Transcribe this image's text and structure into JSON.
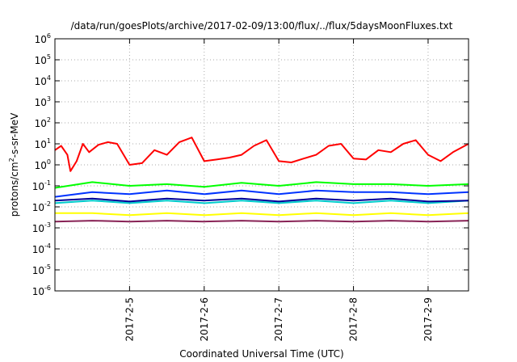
{
  "chart_data": {
    "type": "line",
    "title": "/data/run/goesPlots/archive/2017-02-09/13:00/flux/../flux/5daysMoonFluxes.txt",
    "xlabel": "Coordinated Universal Time (UTC)",
    "ylabel": "protons/cm²-s-sr-MeV",
    "ylabel_parts": {
      "before": "protons/cm",
      "sup": "2",
      "after": "-s-sr-MeV"
    },
    "y_scale": "log",
    "ylim": [
      1e-06,
      1000000.0
    ],
    "y_ticks": [
      {
        "base": "10",
        "exp": "-6",
        "value": 1e-06
      },
      {
        "base": "10",
        "exp": "-5",
        "value": 1e-05
      },
      {
        "base": "10",
        "exp": "-4",
        "value": 0.0001
      },
      {
        "base": "10",
        "exp": "-3",
        "value": 0.001
      },
      {
        "base": "10",
        "exp": "-2",
        "value": 0.01
      },
      {
        "base": "10",
        "exp": "-1",
        "value": 0.1
      },
      {
        "base": "10",
        "exp": "0",
        "value": 1
      },
      {
        "base": "10",
        "exp": "1",
        "value": 10
      },
      {
        "base": "10",
        "exp": "2",
        "value": 100
      },
      {
        "base": "10",
        "exp": "3",
        "value": 1000
      },
      {
        "base": "10",
        "exp": "4",
        "value": 10000
      },
      {
        "base": "10",
        "exp": "5",
        "value": 100000
      },
      {
        "base": "10",
        "exp": "6",
        "value": 1000000
      }
    ],
    "xlim": [
      "2017-02-04 00:00",
      "2017-02-09 13:00"
    ],
    "x_ticks": [
      "2017-2-5",
      "2017-2-6",
      "2017-2-7",
      "2017-2-8",
      "2017-2-9"
    ],
    "grid": true,
    "legend": "none",
    "series": [
      {
        "color": "#ff0000",
        "x": [
          "2017-02-04 00:00",
          "2017-02-04 02:00",
          "2017-02-04 04:00",
          "2017-02-04 05:00",
          "2017-02-04 07:00",
          "2017-02-04 09:00",
          "2017-02-04 11:00",
          "2017-02-04 14:00",
          "2017-02-04 17:00",
          "2017-02-04 20:00",
          "2017-02-05 00:00",
          "2017-02-05 04:00",
          "2017-02-05 08:00",
          "2017-02-05 12:00",
          "2017-02-05 16:00",
          "2017-02-05 20:00",
          "2017-02-06 00:00",
          "2017-02-06 04:00",
          "2017-02-06 08:00",
          "2017-02-06 12:00",
          "2017-02-06 16:00",
          "2017-02-06 20:00",
          "2017-02-07 00:00",
          "2017-02-07 04:00",
          "2017-02-07 08:00",
          "2017-02-07 12:00",
          "2017-02-07 16:00",
          "2017-02-07 20:00",
          "2017-02-08 00:00",
          "2017-02-08 04:00",
          "2017-02-08 08:00",
          "2017-02-08 12:00",
          "2017-02-08 16:00",
          "2017-02-08 20:00",
          "2017-02-09 00:00",
          "2017-02-09 04:00",
          "2017-02-09 08:00",
          "2017-02-09 13:00"
        ],
        "y": [
          5,
          8,
          3,
          0.5,
          1.5,
          10,
          4,
          9,
          12,
          10,
          1,
          1.2,
          5,
          3,
          12,
          20,
          1.5,
          1.8,
          2.2,
          3,
          8,
          15,
          1.5,
          1.3,
          2,
          3,
          8,
          10,
          2,
          1.8,
          5,
          4,
          10,
          15,
          3,
          1.5,
          4,
          10
        ]
      },
      {
        "color": "#00ff00",
        "x": [
          "2017-02-04 00:00",
          "2017-02-04 12:00",
          "2017-02-05 00:00",
          "2017-02-05 12:00",
          "2017-02-06 00:00",
          "2017-02-06 12:00",
          "2017-02-07 00:00",
          "2017-02-07 12:00",
          "2017-02-08 00:00",
          "2017-02-08 12:00",
          "2017-02-09 00:00",
          "2017-02-09 13:00"
        ],
        "y": [
          0.08,
          0.15,
          0.1,
          0.12,
          0.09,
          0.14,
          0.1,
          0.15,
          0.12,
          0.12,
          0.1,
          0.12
        ]
      },
      {
        "color": "#0033ff",
        "x": [
          "2017-02-04 00:00",
          "2017-02-04 12:00",
          "2017-02-05 00:00",
          "2017-02-05 12:00",
          "2017-02-06 00:00",
          "2017-02-06 12:00",
          "2017-02-07 00:00",
          "2017-02-07 12:00",
          "2017-02-08 00:00",
          "2017-02-08 12:00",
          "2017-02-09 00:00",
          "2017-02-09 13:00"
        ],
        "y": [
          0.03,
          0.05,
          0.04,
          0.06,
          0.04,
          0.06,
          0.04,
          0.06,
          0.05,
          0.05,
          0.04,
          0.05
        ]
      },
      {
        "color": "#00cccc",
        "x": [
          "2017-02-04 00:00",
          "2017-02-04 12:00",
          "2017-02-05 00:00",
          "2017-02-05 12:00",
          "2017-02-06 00:00",
          "2017-02-06 12:00",
          "2017-02-07 00:00",
          "2017-02-07 12:00",
          "2017-02-08 00:00",
          "2017-02-08 12:00",
          "2017-02-09 00:00",
          "2017-02-09 13:00"
        ],
        "y": [
          0.015,
          0.02,
          0.015,
          0.02,
          0.015,
          0.02,
          0.015,
          0.02,
          0.015,
          0.02,
          0.015,
          0.02
        ]
      },
      {
        "color": "#000099",
        "x": [
          "2017-02-04 00:00",
          "2017-02-04 12:00",
          "2017-02-05 00:00",
          "2017-02-05 12:00",
          "2017-02-06 00:00",
          "2017-02-06 12:00",
          "2017-02-07 00:00",
          "2017-02-07 12:00",
          "2017-02-08 00:00",
          "2017-02-08 12:00",
          "2017-02-09 00:00",
          "2017-02-09 13:00"
        ],
        "y": [
          0.02,
          0.025,
          0.018,
          0.025,
          0.02,
          0.025,
          0.018,
          0.025,
          0.02,
          0.025,
          0.018,
          0.02
        ]
      },
      {
        "color": "#ffff00",
        "x": [
          "2017-02-04 00:00",
          "2017-02-04 12:00",
          "2017-02-05 00:00",
          "2017-02-05 12:00",
          "2017-02-06 00:00",
          "2017-02-06 12:00",
          "2017-02-07 00:00",
          "2017-02-07 12:00",
          "2017-02-08 00:00",
          "2017-02-08 12:00",
          "2017-02-09 00:00",
          "2017-02-09 13:00"
        ],
        "y": [
          0.005,
          0.005,
          0.004,
          0.005,
          0.004,
          0.005,
          0.004,
          0.005,
          0.004,
          0.005,
          0.004,
          0.005
        ]
      },
      {
        "color": "#882255",
        "x": [
          "2017-02-04 00:00",
          "2017-02-04 12:00",
          "2017-02-05 00:00",
          "2017-02-05 12:00",
          "2017-02-06 00:00",
          "2017-02-06 12:00",
          "2017-02-07 00:00",
          "2017-02-07 12:00",
          "2017-02-08 00:00",
          "2017-02-08 12:00",
          "2017-02-09 00:00",
          "2017-02-09 13:00"
        ],
        "y": [
          0.002,
          0.0022,
          0.002,
          0.0022,
          0.002,
          0.0022,
          0.002,
          0.0022,
          0.002,
          0.0022,
          0.002,
          0.0022
        ]
      }
    ]
  }
}
